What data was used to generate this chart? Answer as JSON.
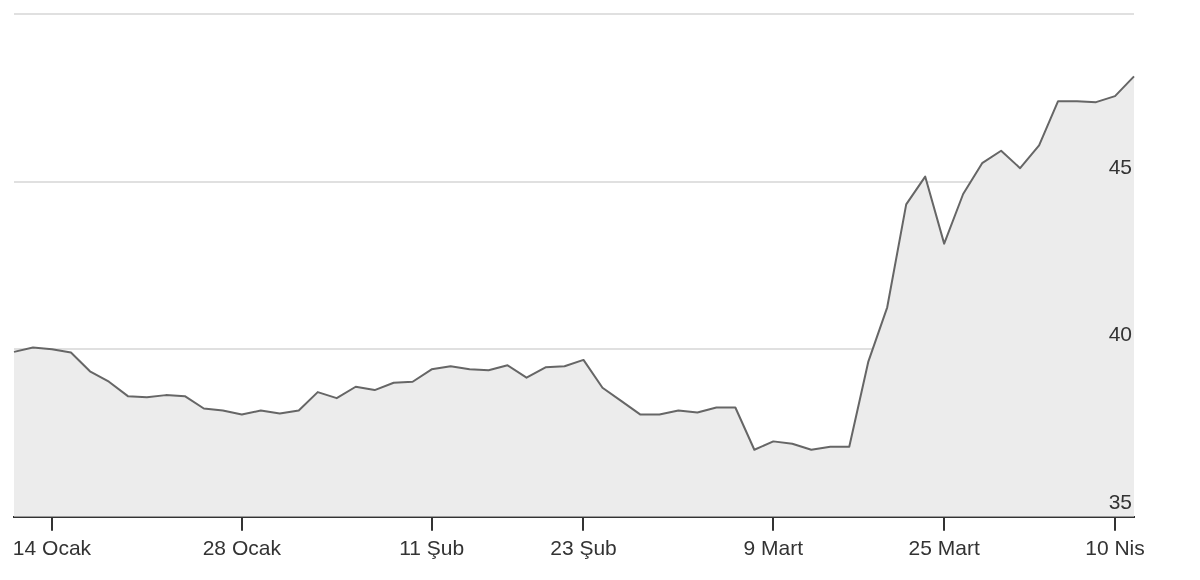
{
  "chart_data": {
    "type": "area",
    "categories": [
      null,
      null,
      "14 Ocak",
      null,
      null,
      null,
      null,
      null,
      null,
      null,
      null,
      null,
      "28 Ocak",
      null,
      null,
      null,
      null,
      null,
      null,
      null,
      null,
      null,
      "11 Şub",
      null,
      null,
      null,
      null,
      null,
      null,
      null,
      "23 Şub",
      null,
      null,
      null,
      null,
      null,
      null,
      null,
      null,
      null,
      "9 Mart",
      null,
      null,
      null,
      null,
      null,
      null,
      null,
      null,
      "25 Mart",
      null,
      null,
      null,
      null,
      null,
      null,
      null,
      null,
      "10 Nis",
      null
    ],
    "series": [
      {
        "color": "#666666",
        "values": [
          39.92,
          40.05,
          40.0,
          39.9,
          39.34,
          39.03,
          38.6,
          38.57,
          38.63,
          38.6,
          38.23,
          38.17,
          38.05,
          38.17,
          38.08,
          38.17,
          38.72,
          38.54,
          38.88,
          38.78,
          39.0,
          39.03,
          39.4,
          39.49,
          39.4,
          39.37,
          39.52,
          39.15,
          39.46,
          39.49,
          39.68,
          38.85,
          38.45,
          38.05,
          38.05,
          38.17,
          38.11,
          38.26,
          38.26,
          37.0,
          37.25,
          37.18,
          37.0,
          37.09,
          37.09,
          39.62,
          41.25,
          44.32,
          45.15,
          43.15,
          44.63,
          45.55,
          45.92,
          45.4,
          46.08,
          47.4,
          47.4,
          47.37,
          47.55,
          48.14
        ]
      }
    ],
    "ylim": [
      35,
      50
    ],
    "yticks": [
      35,
      40,
      45,
      {
        "value": 50,
        "label": null
      }
    ],
    "grid": "y",
    "legend": false
  }
}
